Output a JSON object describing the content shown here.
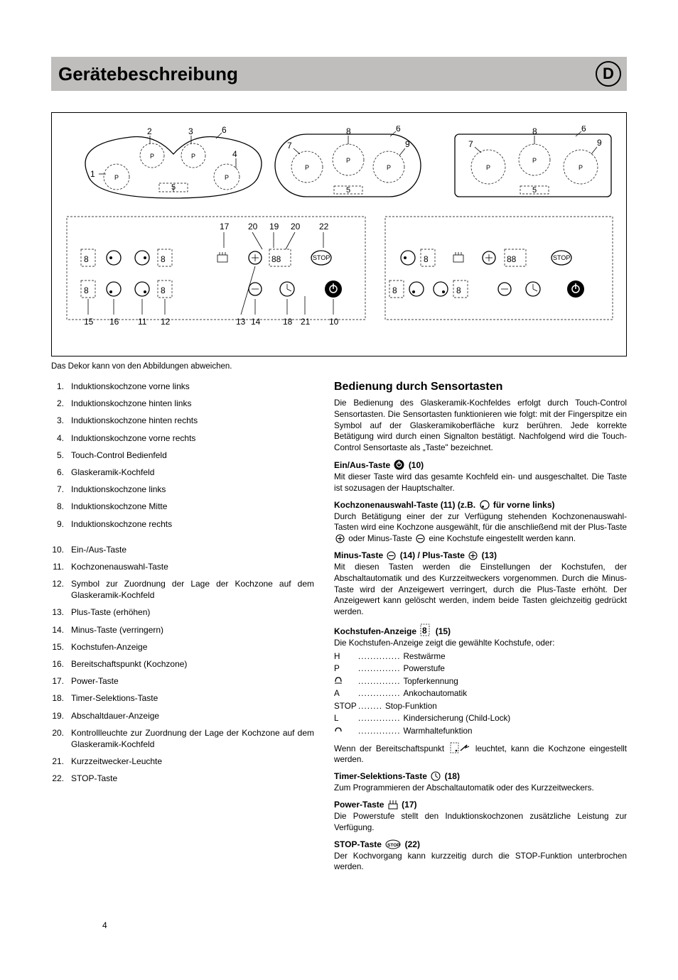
{
  "title": "Gerätebeschreibung",
  "lang_badge": "D",
  "caption": "Das Dekor kann von den Abbildungen abweichen.",
  "page_number": "4",
  "list_a": [
    {
      "n": "1.",
      "t": "Induktionskochzone vorne links"
    },
    {
      "n": "2.",
      "t": "Induktionskochzone hinten links"
    },
    {
      "n": "3.",
      "t": "Induktionskochzone hinten rechts"
    },
    {
      "n": "4.",
      "t": "Induktionskochzone vorne rechts"
    },
    {
      "n": "5.",
      "t": "Touch-Control Bedienfeld"
    },
    {
      "n": "6.",
      "t": "Glaskeramik-Kochfeld"
    },
    {
      "n": "7.",
      "t": "Induktionskochzone links"
    },
    {
      "n": "8.",
      "t": "Induktionskochzone Mitte"
    },
    {
      "n": "9.",
      "t": "Induktionskochzone rechts"
    }
  ],
  "list_b": [
    {
      "n": "10.",
      "t": "Ein-/Aus-Taste"
    },
    {
      "n": "11.",
      "t": "Kochzonenauswahl-Taste"
    },
    {
      "n": "12.",
      "t": "Symbol zur Zuordnung der Lage der Kochzone auf dem Glaskeramik-Kochfeld"
    },
    {
      "n": "13.",
      "t": "Plus-Taste (erhöhen)"
    },
    {
      "n": "14.",
      "t": "Minus-Taste (verringern)"
    },
    {
      "n": "15.",
      "t": "Kochstufen-Anzeige"
    },
    {
      "n": "16.",
      "t": "Bereitschaftspunkt (Kochzone)"
    },
    {
      "n": "17.",
      "t": "Power-Taste"
    },
    {
      "n": "18.",
      "t": "Timer-Selektions-Taste"
    },
    {
      "n": "19.",
      "t": "Abschaltdauer-Anzeige"
    },
    {
      "n": "20.",
      "t": "Kontrollleuchte zur Zuordnung der Lage der Kochzone auf dem Glaskeramik-Kochfeld"
    },
    {
      "n": "21.",
      "t": "Kurzzeitwecker-Leuchte"
    },
    {
      "n": "22.",
      "t": "STOP-Taste"
    }
  ],
  "right": {
    "h2": "Bedienung durch Sensortasten",
    "intro": "Die Bedienung des Glaskeramik-Kochfeldes erfolgt durch Touch-Control Sensortasten. Die Sensortasten funktionieren wie folgt: mit der Fingerspitze ein Symbol auf der Glaskeramikoberfläche kurz berühren. Jede korrekte Betätigung wird durch einen Signalton bestätigt. Nachfolgend wird die Touch-Control Sensortaste als „Taste\" bezeichnet.",
    "sec1_h": "Ein/Aus-Taste",
    "sec1_n": "(10)",
    "sec1_p": "Mit dieser Taste wird das gesamte Kochfeld ein- und ausgeschaltet. Die Taste ist sozusagen der Hauptschalter.",
    "sec2_h": "Kochzonenauswahl-Taste (11) (z.B.",
    "sec2_tail": "für vorne links)",
    "sec2_p_a": "Durch Betätigung einer der zur Verfügung stehenden Kochzonenauswahl-Tasten wird eine Kochzone ausgewählt, für die anschließend mit der Plus-Taste ",
    "sec2_p_b": " oder Minus-Taste ",
    "sec2_p_c": " eine Kochstufe eingestellt werden kann.",
    "sec3_h_a": "Minus-Taste ",
    "sec3_h_mid": " (14) / Plus-Taste ",
    "sec3_h_b": " (13)",
    "sec3_p": "Mit diesen Tasten werden die Einstellungen der Kochstufen, der Abschaltautomatik und des Kurzzeitweckers vorgenommen. Durch die Minus-Taste wird der Anzeigewert verringert, durch die Plus-Taste erhöht. Der Anzeigewert kann gelöscht werden, indem beide Tasten gleichzeitig gedrückt werden.",
    "sec4_h": "Kochstufen-Anzeige",
    "sec4_n": "(15)",
    "sec4_p": "Die Kochstufen-Anzeige zeigt die gewählte Kochstufe, oder:",
    "kv": [
      {
        "k": "H",
        "v": "Restwärme"
      },
      {
        "k": "P",
        "v": "Powerstufe"
      },
      {
        "k": "_pot",
        "v": "Topferkennung"
      },
      {
        "k": "A",
        "v": "Ankochautomatik"
      },
      {
        "k": "STOP",
        "v": "Stop-Funktion"
      },
      {
        "k": "L",
        "v": "Kindersicherung (Child-Lock)"
      },
      {
        "k": "_warm",
        "v": "Warmhaltefunktion"
      }
    ],
    "sec4_p2_a": "Wenn der Bereitschaftspunkt ",
    "sec4_p2_b": " leuchtet, kann die Kochzone eingestellt werden.",
    "sec5_h": "Timer-Selektions-Taste",
    "sec5_n": "(18)",
    "sec5_p": "Zum Programmieren der Abschaltautomatik oder des Kurzzeitweckers.",
    "sec6_h": "Power-Taste",
    "sec6_n": "(17)",
    "sec6_p": "Die Powerstufe stellt den Induktionskochzonen zusätzliche Leistung zur Verfügung.",
    "sec7_h": "STOP-Taste",
    "sec7_n": "(22)",
    "sec7_p": "Der Kochvorgang kann kurzzeitig durch die STOP-Funktion unterbrochen werden."
  },
  "diagram": {
    "top_labels": [
      "1",
      "2",
      "3",
      "4",
      "5",
      "6",
      "7",
      "8",
      "9",
      "5",
      "6",
      "7",
      "8",
      "9",
      "5",
      "6"
    ],
    "bottom_labels": [
      "17",
      "20",
      "19",
      "20",
      "22",
      "15",
      "16",
      "11",
      "12",
      "13",
      "14",
      "18",
      "21",
      "10"
    ]
  },
  "colors": {
    "title_bg": "#bfbebd",
    "text": "#000000"
  }
}
